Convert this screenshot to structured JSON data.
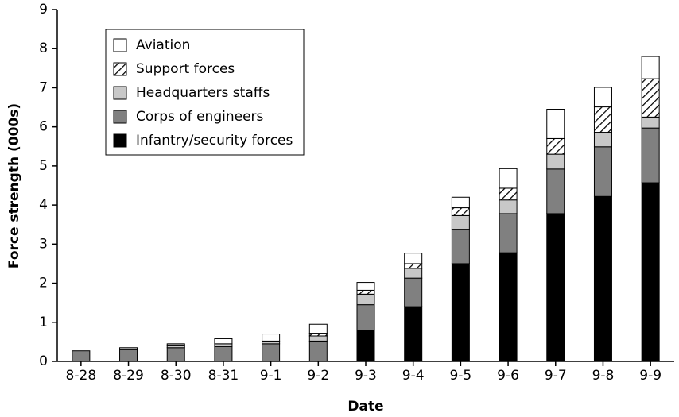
{
  "chart_data": {
    "type": "stacked_bar",
    "xlabel": "Date",
    "ylabel": "Force strength (000s)",
    "categories": [
      "8-28",
      "8-29",
      "8-30",
      "8-31",
      "9-1",
      "9-2",
      "9-3",
      "9-4",
      "9-5",
      "9-6",
      "9-7",
      "9-8",
      "9-9"
    ],
    "series": [
      {
        "name": "Infantry/security forces",
        "color": "#000000",
        "values": [
          0,
          0,
          0,
          0,
          0,
          0,
          0.8,
          1.4,
          2.5,
          2.78,
          3.78,
          4.22,
          4.57
        ]
      },
      {
        "name": "Corps of engineers",
        "color": "#808080",
        "values": [
          0.27,
          0.3,
          0.35,
          0.38,
          0.45,
          0.52,
          0.65,
          0.73,
          0.88,
          1.0,
          1.14,
          1.27,
          1.4
        ]
      },
      {
        "name": "Headquarters staffs",
        "color": "#c8c8c8",
        "values": [
          0,
          0.05,
          0.07,
          0.07,
          0.07,
          0.13,
          0.27,
          0.25,
          0.35,
          0.35,
          0.38,
          0.37,
          0.28
        ]
      },
      {
        "name": "Support forces",
        "color": "#ffffff",
        "pattern": "hatch",
        "values": [
          0,
          0,
          0,
          0,
          0,
          0.07,
          0.1,
          0.12,
          0.2,
          0.3,
          0.4,
          0.65,
          0.98
        ]
      },
      {
        "name": "Aviation",
        "color": "#ffffff",
        "values": [
          0,
          0,
          0.03,
          0.13,
          0.18,
          0.23,
          0.2,
          0.27,
          0.27,
          0.5,
          0.75,
          0.5,
          0.57
        ]
      }
    ],
    "ylim": [
      0,
      9
    ],
    "yticks": [
      0,
      1,
      2,
      3,
      4,
      5,
      6,
      7,
      8,
      9
    ],
    "legend": "upper left"
  }
}
